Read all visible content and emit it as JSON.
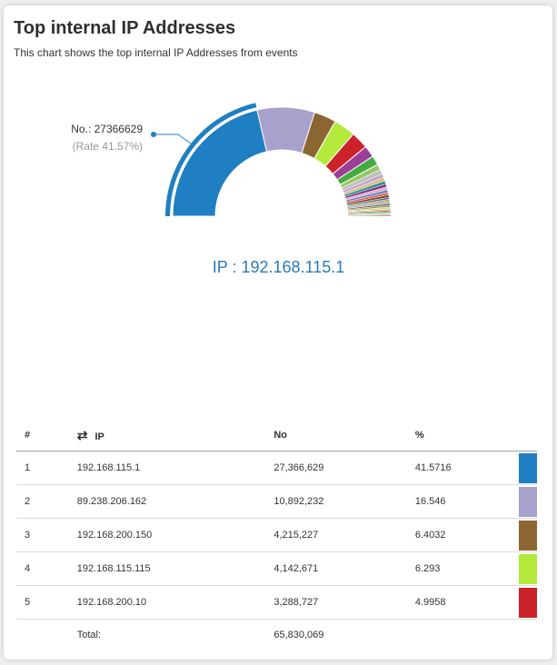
{
  "header": {
    "title": "Top internal IP Addresses",
    "subtitle": "This chart shows the top internal IP Addresses from events"
  },
  "tooltip": {
    "count_label": "No.: 27366629",
    "rate_label": "(Rate 41.57%)"
  },
  "selected_ip_label": "IP : 192.168.115.1",
  "table": {
    "headers": {
      "rank": "#",
      "ip": "IP",
      "no": "No",
      "pct": "%"
    },
    "rows": [
      {
        "rank": "1",
        "ip": "192.168.115.1",
        "no": "27,366,629",
        "pct": "41.5716",
        "color": "#1f7fc2"
      },
      {
        "rank": "2",
        "ip": "89.238.206.162",
        "no": "10,892,232",
        "pct": "16.546",
        "color": "#a8a1cc"
      },
      {
        "rank": "3",
        "ip": "192.168.200.150",
        "no": "4,215,227",
        "pct": "6.4032",
        "color": "#8c6632"
      },
      {
        "rank": "4",
        "ip": "192.168.115.115",
        "no": "4,142,671",
        "pct": "6.293",
        "color": "#b3ea3b"
      },
      {
        "rank": "5",
        "ip": "192.168.200.10",
        "no": "3,288,727",
        "pct": "4.9958",
        "color": "#cc2229"
      }
    ],
    "total_label": "Total:",
    "total_value": "65,830,069"
  },
  "chart_data": {
    "type": "pie",
    "variant": "semi-donut",
    "highlighted_index": 0,
    "slices": [
      {
        "label": "192.168.115.1",
        "value": 27366629,
        "percent": 41.5716,
        "color": "#1f7fc2"
      },
      {
        "label": "89.238.206.162",
        "value": 10892232,
        "percent": 16.546,
        "color": "#a8a1cc"
      },
      {
        "label": "192.168.200.150",
        "value": 4215227,
        "percent": 6.4032,
        "color": "#8c6632"
      },
      {
        "label": "192.168.115.115",
        "value": 4142671,
        "percent": 6.293,
        "color": "#b3ea3b"
      },
      {
        "label": "192.168.200.10",
        "value": 3288727,
        "percent": 4.9958,
        "color": "#cc2229"
      },
      {
        "label": "",
        "percent": 3.4,
        "color": "#9b3f98"
      },
      {
        "label": "",
        "percent": 2.7,
        "color": "#43ab42"
      },
      {
        "label": "",
        "percent": 1.7,
        "color": "#98c667"
      },
      {
        "label": "",
        "percent": 1.3,
        "color": "#bdbfbf"
      },
      {
        "label": "",
        "percent": 1.1,
        "color": "#c4a6cd"
      },
      {
        "label": "",
        "percent": 1.0,
        "color": "#d8bf88"
      },
      {
        "label": "",
        "percent": 0.9,
        "color": "#2f8f86"
      },
      {
        "label": "",
        "percent": 0.9,
        "color": "#7c3a86"
      },
      {
        "label": "",
        "percent": 0.8,
        "color": "#e5a5c6"
      },
      {
        "label": "",
        "percent": 0.8,
        "color": "#5e87c5"
      },
      {
        "label": "",
        "percent": 0.7,
        "color": "#e0584f"
      },
      {
        "label": "",
        "percent": 0.7,
        "color": "#7a3f19"
      },
      {
        "label": "",
        "percent": 0.6,
        "color": "#4a6fb2"
      },
      {
        "label": "",
        "percent": 0.6,
        "color": "#cf9b3e"
      },
      {
        "label": "",
        "percent": 0.6,
        "color": "#7fb8d9"
      },
      {
        "label": "",
        "percent": 0.5,
        "color": "#a23b3b"
      },
      {
        "label": "",
        "percent": 0.5,
        "color": "#6aa84f"
      },
      {
        "label": "",
        "percent": 0.5,
        "color": "#e8d07a"
      },
      {
        "label": "",
        "percent": 0.4,
        "color": "#b0b0b0"
      },
      {
        "label": "",
        "percent": 0.4,
        "color": "#d95f02"
      },
      {
        "label": "",
        "percent": 0.4,
        "color": "#1b9e77"
      },
      {
        "label": "",
        "percent": 0.3,
        "color": "#e0c4a0"
      },
      {
        "label": "",
        "percent": 0.3,
        "color": "#8da0cb"
      },
      {
        "label": "",
        "percent": 0.3,
        "color": "#a6761d"
      }
    ]
  }
}
